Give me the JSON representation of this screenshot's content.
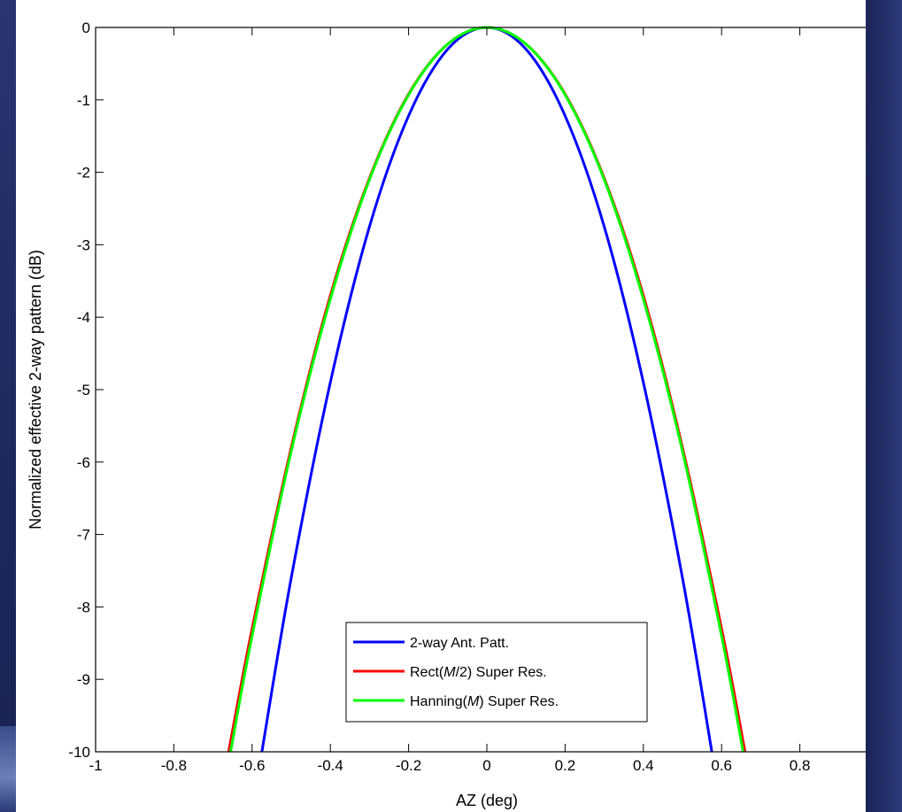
{
  "chart_data": {
    "type": "line",
    "title": "",
    "xlabel": "AZ (deg)",
    "ylabel": "Normalized effective 2-way pattern (dB)",
    "xlim": [
      -1,
      1
    ],
    "ylim": [
      -10,
      0
    ],
    "xticks": [
      "-1",
      "-0.8",
      "-0.6",
      "-0.4",
      "-0.2",
      "0",
      "0.2",
      "0.4",
      "0.6",
      "0.8",
      "1"
    ],
    "yticks": [
      "0",
      "-1",
      "-2",
      "-3",
      "-4",
      "-5",
      "-6",
      "-7",
      "-8",
      "-9",
      "-10"
    ],
    "grid": false,
    "legend_position": "bottom-center",
    "series": [
      {
        "name": "2-way Ant. Patt.",
        "legend_parts": [
          {
            "t": "2-way Ant. Patt.",
            "i": false
          }
        ],
        "color": "#0000ff",
        "x": [
          -0.575,
          -0.5,
          -0.4,
          -0.3,
          -0.2,
          -0.1,
          0,
          0.1,
          0.2,
          0.3,
          0.4,
          0.5,
          0.575
        ],
        "y": [
          -10,
          -7.6,
          -4.9,
          -2.75,
          -1.22,
          -0.3,
          0,
          -0.3,
          -1.22,
          -2.75,
          -4.9,
          -7.6,
          -10
        ]
      },
      {
        "name": "Rect(M/2) Super Res.",
        "legend_parts": [
          {
            "t": "Rect(",
            "i": false
          },
          {
            "t": "M",
            "i": true
          },
          {
            "t": "/2) Super Res.",
            "i": false
          }
        ],
        "color": "#ff0000",
        "x": [
          -0.66,
          -0.6,
          -0.5,
          -0.4,
          -0.3,
          -0.2,
          -0.1,
          0,
          0.1,
          0.2,
          0.3,
          0.4,
          0.5,
          0.6,
          0.66
        ],
        "y": [
          -10,
          -8.3,
          -5.8,
          -3.7,
          -2.08,
          -0.92,
          -0.23,
          0,
          -0.23,
          -0.92,
          -2.08,
          -3.7,
          -5.8,
          -8.3,
          -10
        ]
      },
      {
        "name": "Hanning(M) Super Res.",
        "legend_parts": [
          {
            "t": "Hanning(",
            "i": false
          },
          {
            "t": "M",
            "i": true
          },
          {
            "t": ") Super Res.",
            "i": false
          }
        ],
        "color": "#00ff00",
        "x": [
          -0.655,
          -0.6,
          -0.5,
          -0.4,
          -0.3,
          -0.2,
          -0.1,
          0,
          0.1,
          0.2,
          0.3,
          0.4,
          0.5,
          0.6,
          0.655
        ],
        "y": [
          -10,
          -8.4,
          -5.85,
          -3.75,
          -2.1,
          -0.93,
          -0.23,
          0,
          -0.23,
          -0.93,
          -2.1,
          -3.75,
          -5.85,
          -8.4,
          -10
        ]
      }
    ]
  }
}
